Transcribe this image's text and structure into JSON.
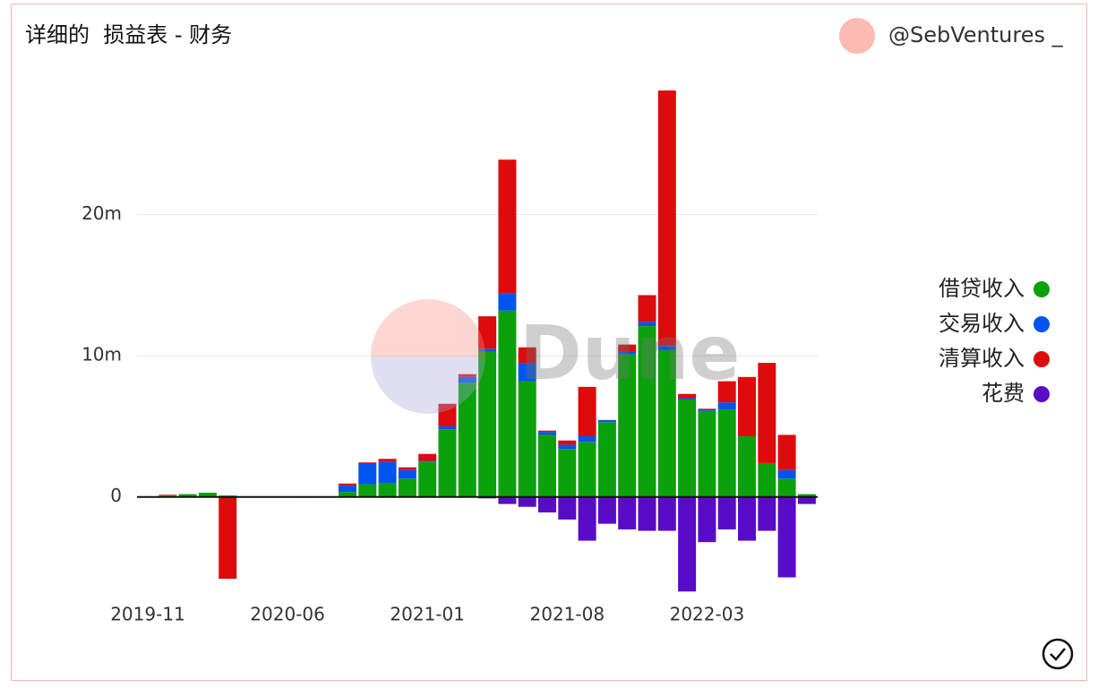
{
  "header": {
    "title": "详细的  损益表 - 财务",
    "user": "@SebVentures _"
  },
  "chart_data": {
    "type": "bar",
    "stacked": true,
    "watermark": "Dune",
    "categories": [
      "2019-11",
      null,
      null,
      null,
      null,
      null,
      null,
      "2020-06",
      null,
      null,
      null,
      null,
      null,
      null,
      "2021-01",
      null,
      null,
      null,
      null,
      null,
      null,
      "2021-08",
      null,
      null,
      null,
      null,
      null,
      null,
      "2022-03",
      null,
      null,
      null,
      null,
      null
    ],
    "series": [
      {
        "name": "借贷收入",
        "color": "#0ba10b",
        "values": [
          0,
          100000,
          200000,
          300000,
          100000,
          0,
          0,
          0,
          0,
          0,
          350000,
          900000,
          1000000,
          1300000,
          2500000,
          4800000,
          8100000,
          10300000,
          13200000,
          8200000,
          4400000,
          3400000,
          3900000,
          5300000,
          10100000,
          12100000,
          10400000,
          6900000,
          6100000,
          6200000,
          4300000,
          2400000,
          1300000,
          200000
        ]
      },
      {
        "name": "交易收入",
        "color": "#0055ee",
        "values": [
          0,
          0,
          0,
          0,
          0,
          0,
          0,
          0,
          50000,
          0,
          450000,
          1500000,
          1500000,
          600000,
          50000,
          200000,
          400000,
          200000,
          1200000,
          1300000,
          200000,
          300000,
          400000,
          150000,
          200000,
          300000,
          300000,
          100000,
          100000,
          500000,
          0,
          0,
          600000,
          0
        ]
      },
      {
        "name": "清算收入",
        "color": "#dd0b0b",
        "values": [
          0,
          50000,
          0,
          0,
          -5800000,
          0,
          0,
          50000,
          0,
          0,
          150000,
          50000,
          200000,
          200000,
          500000,
          1600000,
          200000,
          2300000,
          9500000,
          1100000,
          100000,
          300000,
          3500000,
          0,
          500000,
          1900000,
          18100000,
          300000,
          50000,
          1500000,
          4200000,
          7100000,
          2500000,
          0
        ]
      },
      {
        "name": "花费",
        "color": "#5a0bc8",
        "values": [
          0,
          0,
          0,
          0,
          0,
          0,
          0,
          0,
          0,
          0,
          0,
          0,
          0,
          0,
          0,
          0,
          0,
          -100000,
          -500000,
          -700000,
          -1100000,
          -1600000,
          -3100000,
          -1900000,
          -2300000,
          -2400000,
          -2400000,
          -6700000,
          -3200000,
          -2300000,
          -3100000,
          -2400000,
          -5700000,
          -500000
        ]
      }
    ],
    "ylim": [
      -7000000,
      29500000
    ],
    "yticks": [
      {
        "value": 0,
        "label": "0"
      },
      {
        "value": 10000000,
        "label": "10m"
      },
      {
        "value": 20000000,
        "label": "20m"
      }
    ],
    "grid": true,
    "legend": "right"
  }
}
